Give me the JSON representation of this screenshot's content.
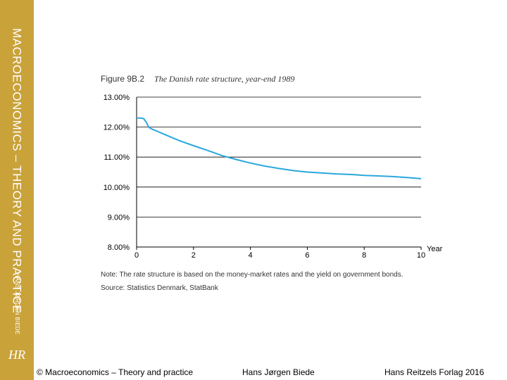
{
  "sidebar": {
    "title": "MACROECONOMICS – THEORY AND PRACTICE",
    "author": "HANS JØRGEN BIEDE",
    "logo": "HR"
  },
  "figure": {
    "number": "Figure 9B.2",
    "caption": "The Danish rate structure, year-end 1989",
    "note": "Note: The rate structure is based on the money-market rates and the yield on government bonds.",
    "source": "Source: Statistics Denmark, StatBank"
  },
  "chart_data": {
    "type": "line",
    "title": "The Danish rate structure, year-end 1989",
    "xlabel": "Year",
    "ylabel": "",
    "xlim": [
      0,
      10
    ],
    "ylim": [
      8,
      13
    ],
    "xticks": [
      0,
      2,
      4,
      6,
      8,
      10
    ],
    "xtick_labels": [
      "0",
      "2",
      "4",
      "6",
      "8",
      "10"
    ],
    "yticks": [
      8,
      9,
      10,
      11,
      12,
      13
    ],
    "ytick_labels": [
      "8.00%",
      "9.00%",
      "10.00%",
      "11.00%",
      "12.00%",
      "13.00%"
    ],
    "grid": "horizontal",
    "line_color": "#2aa7dc",
    "series": [
      {
        "x": [
          0,
          0.15,
          0.25,
          0.35,
          0.42,
          0.5,
          0.75,
          1,
          1.5,
          2,
          2.5,
          3,
          3.5,
          4,
          4.5,
          5,
          5.5,
          6,
          6.5,
          7,
          7.5,
          8,
          8.5,
          9,
          9.5,
          10
        ],
        "values": [
          12.3,
          12.3,
          12.28,
          12.15,
          12.0,
          11.95,
          11.85,
          11.75,
          11.55,
          11.38,
          11.22,
          11.05,
          10.92,
          10.8,
          10.7,
          10.62,
          10.55,
          10.5,
          10.47,
          10.44,
          10.42,
          10.39,
          10.37,
          10.35,
          10.32,
          10.28
        ]
      }
    ]
  },
  "footer": {
    "left": "© Macroeconomics – Theory and practice",
    "center": "Hans Jørgen Biede",
    "right": "Hans Reitzels Forlag 2016"
  }
}
